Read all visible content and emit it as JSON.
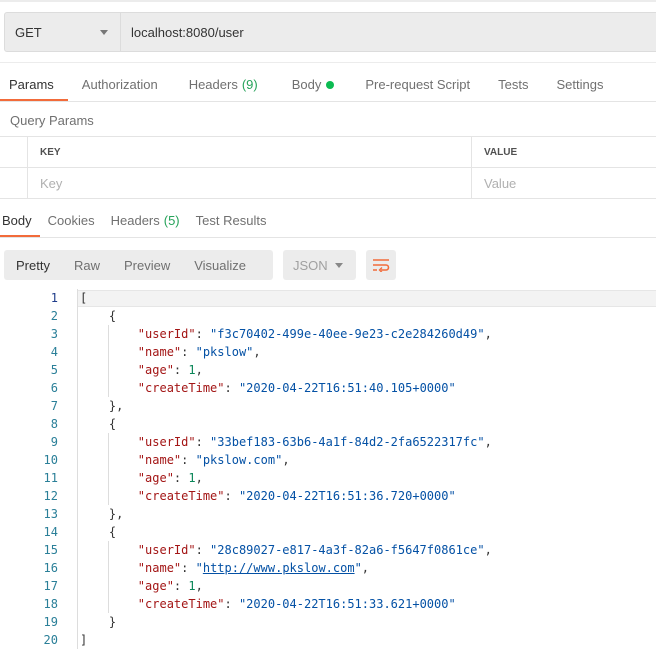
{
  "request": {
    "method": "GET",
    "url": "localhost:8080/user"
  },
  "request_tabs": [
    {
      "label": "Params",
      "active": true
    },
    {
      "label": "Authorization"
    },
    {
      "label": "Headers",
      "count": "(9)"
    },
    {
      "label": "Body",
      "dot": true
    },
    {
      "label": "Pre-request Script"
    },
    {
      "label": "Tests"
    },
    {
      "label": "Settings"
    }
  ],
  "query_params": {
    "title": "Query Params",
    "key_header": "KEY",
    "value_header": "VALUE",
    "key_placeholder": "Key",
    "value_placeholder": "Value"
  },
  "response_tabs": [
    {
      "label": "Body",
      "active": true
    },
    {
      "label": "Cookies"
    },
    {
      "label": "Headers",
      "count": "(5)"
    },
    {
      "label": "Test Results"
    }
  ],
  "view_modes": [
    "Pretty",
    "Raw",
    "Preview",
    "Visualize"
  ],
  "active_view": "Pretty",
  "format": "JSON",
  "icons": {
    "method_dropdown": "chevron-down-icon",
    "format_dropdown": "chevron-down-icon",
    "wrap": "wrap-lines-icon"
  },
  "colors": {
    "accent": "#f26b3a",
    "key": "#a31515",
    "string": "#0451a5",
    "number": "#098658"
  },
  "code_lines": [
    [
      [
        "p",
        "["
      ]
    ],
    [
      [
        "p",
        "    {"
      ]
    ],
    [
      [
        "p",
        "        "
      ],
      [
        "k",
        "\"userId\""
      ],
      [
        "p",
        ": "
      ],
      [
        "s",
        "\"f3c70402-499e-40ee-9e23-c2e284260d49\""
      ],
      [
        "p",
        ","
      ]
    ],
    [
      [
        "p",
        "        "
      ],
      [
        "k",
        "\"name\""
      ],
      [
        "p",
        ": "
      ],
      [
        "s",
        "\"pkslow\""
      ],
      [
        "p",
        ","
      ]
    ],
    [
      [
        "p",
        "        "
      ],
      [
        "k",
        "\"age\""
      ],
      [
        "p",
        ": "
      ],
      [
        "n",
        "1"
      ],
      [
        "p",
        ","
      ]
    ],
    [
      [
        "p",
        "        "
      ],
      [
        "k",
        "\"createTime\""
      ],
      [
        "p",
        ": "
      ],
      [
        "s",
        "\"2020-04-22T16:51:40.105+0000\""
      ]
    ],
    [
      [
        "p",
        "    },"
      ]
    ],
    [
      [
        "p",
        "    {"
      ]
    ],
    [
      [
        "p",
        "        "
      ],
      [
        "k",
        "\"userId\""
      ],
      [
        "p",
        ": "
      ],
      [
        "s",
        "\"33bef183-63b6-4a1f-84d2-2fa6522317fc\""
      ],
      [
        "p",
        ","
      ]
    ],
    [
      [
        "p",
        "        "
      ],
      [
        "k",
        "\"name\""
      ],
      [
        "p",
        ": "
      ],
      [
        "s",
        "\"pkslow.com\""
      ],
      [
        "p",
        ","
      ]
    ],
    [
      [
        "p",
        "        "
      ],
      [
        "k",
        "\"age\""
      ],
      [
        "p",
        ": "
      ],
      [
        "n",
        "1"
      ],
      [
        "p",
        ","
      ]
    ],
    [
      [
        "p",
        "        "
      ],
      [
        "k",
        "\"createTime\""
      ],
      [
        "p",
        ": "
      ],
      [
        "s",
        "\"2020-04-22T16:51:36.720+0000\""
      ]
    ],
    [
      [
        "p",
        "    },"
      ]
    ],
    [
      [
        "p",
        "    {"
      ]
    ],
    [
      [
        "p",
        "        "
      ],
      [
        "k",
        "\"userId\""
      ],
      [
        "p",
        ": "
      ],
      [
        "s",
        "\"28c89027-e817-4a3f-82a6-f5647f0861ce\""
      ],
      [
        "p",
        ","
      ]
    ],
    [
      [
        "p",
        "        "
      ],
      [
        "k",
        "\"name\""
      ],
      [
        "p",
        ": "
      ],
      [
        "s",
        "\""
      ],
      [
        "u",
        "http://www.pkslow.com"
      ],
      [
        "s",
        "\""
      ],
      [
        "p",
        ","
      ]
    ],
    [
      [
        "p",
        "        "
      ],
      [
        "k",
        "\"age\""
      ],
      [
        "p",
        ": "
      ],
      [
        "n",
        "1"
      ],
      [
        "p",
        ","
      ]
    ],
    [
      [
        "p",
        "        "
      ],
      [
        "k",
        "\"createTime\""
      ],
      [
        "p",
        ": "
      ],
      [
        "s",
        "\"2020-04-22T16:51:33.621+0000\""
      ]
    ],
    [
      [
        "p",
        "    }"
      ]
    ],
    [
      [
        "p",
        "]"
      ]
    ]
  ]
}
